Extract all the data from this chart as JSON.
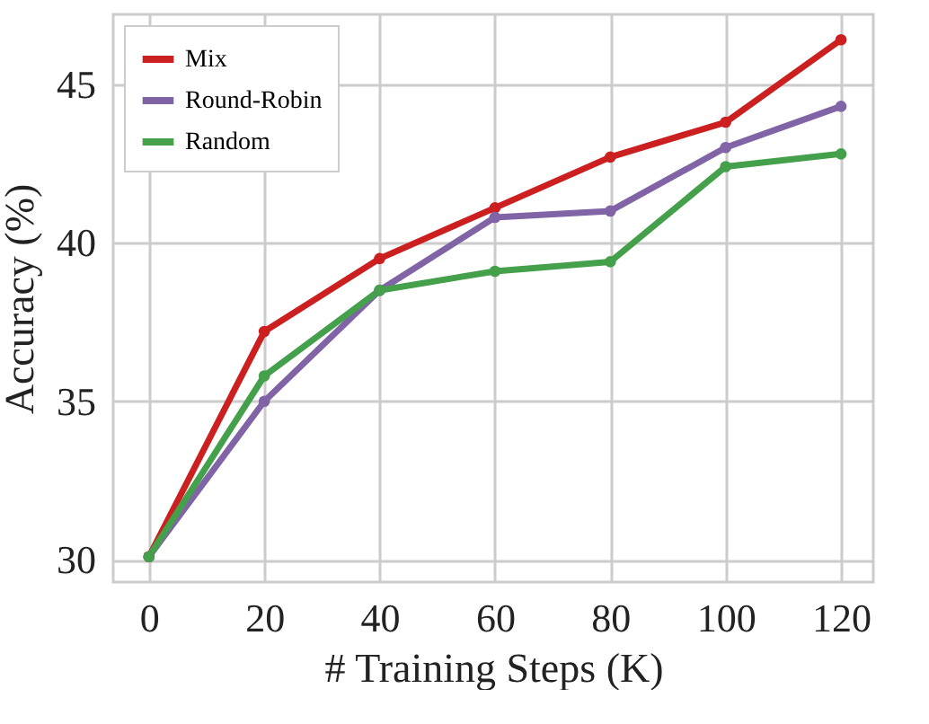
{
  "chart_data": {
    "type": "line",
    "xlabel": "# Training Steps (K)",
    "ylabel": "Accuracy (%)",
    "x": [
      0,
      20,
      40,
      60,
      80,
      100,
      120
    ],
    "series": [
      {
        "name": "Mix",
        "color": "#cc1f1f",
        "values": [
          30.1,
          37.2,
          39.5,
          41.1,
          42.7,
          43.8,
          46.4
        ]
      },
      {
        "name": "Round-Robin",
        "color": "#8064a6",
        "values": [
          30.1,
          35.0,
          38.5,
          40.8,
          41.0,
          43.0,
          44.3
        ]
      },
      {
        "name": "Random",
        "color": "#44a04a",
        "values": [
          30.1,
          35.8,
          38.5,
          39.1,
          39.4,
          42.4,
          42.8
        ]
      }
    ],
    "xlim": [
      -6.2,
      125.6
    ],
    "ylim": [
      29.3,
      47.2
    ],
    "xticks": [
      0,
      20,
      40,
      60,
      80,
      100,
      120
    ],
    "yticks": [
      30,
      35,
      40,
      45
    ],
    "grid": true,
    "legend": "top left",
    "marker": "circle",
    "line_style": "solid"
  }
}
